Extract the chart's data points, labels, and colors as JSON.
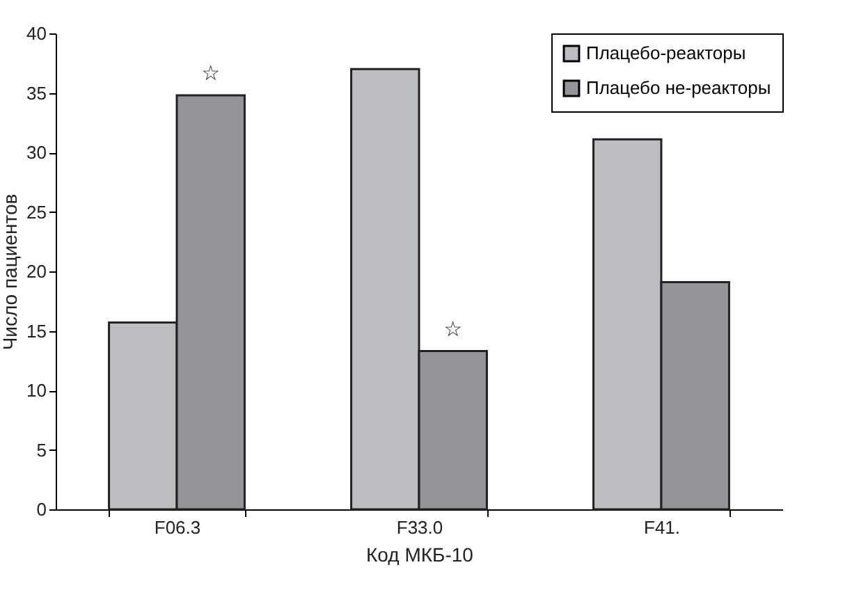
{
  "chart_data": {
    "type": "bar",
    "categories": [
      "F06.3",
      "F33.0",
      "F41."
    ],
    "series": [
      {
        "name": "Плацебо-реакторы",
        "color": "#bcbdc0",
        "values": [
          15.7,
          37.0,
          31.1
        ]
      },
      {
        "name": "Плацебо не-реакторы",
        "color": "#939598",
        "values": [
          34.8,
          13.3,
          19.1
        ]
      }
    ],
    "xlabel": "Код МКБ-10",
    "ylabel": "Число пациентов",
    "ylim": [
      0,
      40
    ],
    "yticks": [
      0,
      5,
      10,
      15,
      20,
      25,
      30,
      35,
      40
    ],
    "annotations": [
      {
        "text": "☆",
        "x": "F06.3",
        "y": 34.8
      },
      {
        "text": "☆",
        "x": "F33.0",
        "y": 13.3
      }
    ],
    "grid": false,
    "legend": "top right"
  }
}
